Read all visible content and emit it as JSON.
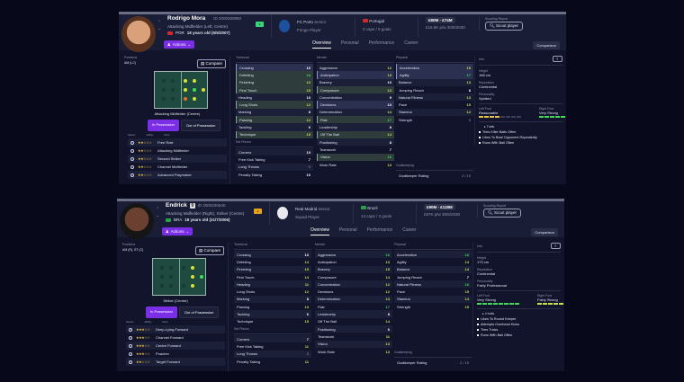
{
  "players": [
    {
      "name": "Rodrigo Mora",
      "shirt": "",
      "id": "ID 2000260860",
      "position": "Attacking Midfielder (Left, Centre)",
      "nationality_code": "POR",
      "age": "18 years old (5/5/2007)",
      "badge_color": "#37d67a",
      "club": "FC Porto",
      "club_status": "Senior",
      "squad_status": "Fringe Player",
      "country": "Portugal",
      "caps": "0 caps / 0 goals",
      "value": "£80M - £74M",
      "wage": "£16.5K p/w 30/6/2030",
      "scout_label": "Scouting Report",
      "scout_btn": "Scout player",
      "tabs": [
        "Overview",
        "Personal",
        "Performance",
        "Career"
      ],
      "comparison": "Comparison",
      "actions": "Actions",
      "positions_label": "Positions",
      "positions": "AM (LC)",
      "compare": "Compare",
      "role": "Attacking Midfielder (Centre)",
      "in_poss": "In Possession",
      "out_poss": "Out of Possession",
      "role_headers": [
        "Select",
        "Ability",
        "Role"
      ],
      "roles": [
        {
          "stars": "★★☆☆☆",
          "name": "Free Role"
        },
        {
          "stars": "★★☆☆☆",
          "name": "Attacking Midfielder"
        },
        {
          "stars": "★★☆☆☆",
          "name": "Second Striker"
        },
        {
          "stars": "★★☆☆☆",
          "name": "Channel Midfielder"
        },
        {
          "stars": "★★☆☆☆",
          "name": "Advanced Playmaker"
        }
      ],
      "technical": [
        [
          "Crossing",
          "10"
        ],
        [
          "Dribbling",
          "16"
        ],
        [
          "Finishing",
          "13"
        ],
        [
          "First Touch",
          "15"
        ],
        [
          "Heading",
          "10"
        ],
        [
          "Long Shots",
          "12"
        ],
        [
          "Marking",
          "8"
        ],
        [
          "Passing",
          "12"
        ],
        [
          "Tackling",
          "6"
        ],
        [
          "Technique",
          "15"
        ]
      ],
      "set_pieces": [
        [
          "Corners",
          "10"
        ],
        [
          "Free Kick Taking",
          "7"
        ],
        [
          "Long Throws",
          "5"
        ],
        [
          "Penalty Taking",
          "10"
        ]
      ],
      "mental": [
        [
          "Aggression",
          "12"
        ],
        [
          "Anticipation",
          "13"
        ],
        [
          "Bravery",
          "10"
        ],
        [
          "Composure",
          "12"
        ],
        [
          "Concentration",
          "9"
        ],
        [
          "Decisions",
          "10"
        ],
        [
          "Determination",
          "14"
        ],
        [
          "Flair",
          "17"
        ],
        [
          "Leadership",
          "8"
        ],
        [
          "Off The Ball",
          "14"
        ],
        [
          "Positioning",
          "8"
        ],
        [
          "Teamwork",
          "7"
        ],
        [
          "Vision",
          "16"
        ],
        [
          "Work Rate",
          "13"
        ]
      ],
      "physical": [
        [
          "Acceleration",
          "15"
        ],
        [
          "Agility",
          "17"
        ],
        [
          "Balance",
          "13"
        ],
        [
          "Jumping Reach",
          "8"
        ],
        [
          "Natural Fitness",
          "13"
        ],
        [
          "Pace",
          "15"
        ],
        [
          "Stamina",
          "12"
        ],
        [
          "Strength",
          "5"
        ]
      ],
      "gk_rating": "2 / 10",
      "info": {
        "height": "168 cm",
        "reputation": "Continental",
        "personality": "Spirited",
        "left_foot": "Reasonable",
        "right_foot": "Very Strong",
        "traits_label": "Traits",
        "traits": [
          "Tries Killer Balls Often",
          "Likes To Beat Opponent Repeatedly",
          "Runs With Ball Often"
        ]
      }
    },
    {
      "name": "Endrick",
      "shirt": "9",
      "id": "ID 2000230640",
      "position": "Attacking Midfielder (Right), Striker (Centre)",
      "nationality_code": "BRA",
      "age": "18 years old (21/7/2006)",
      "badge_color": "#e8a21a",
      "club": "Real Madrid",
      "club_status": "Senior",
      "squad_status": "Squad Player",
      "country": "Brazil",
      "caps": "14 caps / 3 goals",
      "value": "£90M - £118M",
      "wage": "£87K p/w 30/6/2030",
      "scout_label": "Scouting Report",
      "scout_btn": "Scout player",
      "tabs": [
        "Overview",
        "Personal",
        "Performance",
        "Career"
      ],
      "comparison": "Comparison",
      "actions": "Actions",
      "positions_label": "Positions",
      "positions": "AM (R), ST (C)",
      "compare": "Compare",
      "role": "Striker (Centre)",
      "in_poss": "In Possession",
      "out_poss": "Out of Possession",
      "role_headers": [
        "Select",
        "Ability",
        "Role"
      ],
      "roles": [
        {
          "stars": "★★★☆☆",
          "name": "Deep-Lying Forward"
        },
        {
          "stars": "★★★☆☆",
          "name": "Channel Forward"
        },
        {
          "stars": "★★★☆☆",
          "name": "Centre Forward"
        },
        {
          "stars": "★★★☆☆",
          "name": "Poacher"
        },
        {
          "stars": "★★☆☆☆",
          "name": "Target Forward"
        }
      ],
      "technical": [
        [
          "Crossing",
          "10"
        ],
        [
          "Dribbling",
          "14"
        ],
        [
          "Finishing",
          "15"
        ],
        [
          "First Touch",
          "14"
        ],
        [
          "Heading",
          "11"
        ],
        [
          "Long Shots",
          "12"
        ],
        [
          "Marking",
          "8"
        ],
        [
          "Passing",
          "13"
        ],
        [
          "Tackling",
          "6"
        ],
        [
          "Technique",
          "15"
        ]
      ],
      "set_pieces": [
        [
          "Corners",
          "7"
        ],
        [
          "Free Kick Taking",
          "11"
        ],
        [
          "Long Throws",
          "5"
        ],
        [
          "Penalty Taking",
          "11"
        ]
      ],
      "mental": [
        [
          "Aggression",
          "16"
        ],
        [
          "Anticipation",
          "13"
        ],
        [
          "Bravery",
          "15"
        ],
        [
          "Composure",
          "14"
        ],
        [
          "Concentration",
          "12"
        ],
        [
          "Decisions",
          "12"
        ],
        [
          "Determination",
          "13"
        ],
        [
          "Flair",
          "17"
        ],
        [
          "Leadership",
          "8"
        ],
        [
          "Off The Ball",
          "14"
        ],
        [
          "Positioning",
          "6"
        ],
        [
          "Teamwork",
          "11"
        ],
        [
          "Vision",
          "13"
        ],
        [
          "Work Rate",
          "13"
        ]
      ],
      "physical": [
        [
          "Acceleration",
          "16"
        ],
        [
          "Agility",
          "14"
        ],
        [
          "Balance",
          "14"
        ],
        [
          "Jumping Reach",
          "7"
        ],
        [
          "Natural Fitness",
          "16"
        ],
        [
          "Pace",
          "15"
        ],
        [
          "Stamina",
          "14"
        ],
        [
          "Strength",
          "15"
        ]
      ],
      "gk_rating": "2 / 10",
      "info": {
        "height": "173 cm",
        "reputation": "Continental",
        "personality": "Fairly Professional",
        "left_foot": "Very Strong",
        "right_foot": "Fairly Strong",
        "traits_label": "4 traits",
        "traits": [
          "Likes To Round Keeper",
          "Attempts Overhead Kicks",
          "Tries Tricks",
          "Runs With Ball Often"
        ]
      }
    }
  ],
  "labels": {
    "technical": "Technical",
    "set_pieces": "Set Pieces",
    "mental": "Mental",
    "physical": "Physical",
    "goalkeeping": "Goalkeeping",
    "gk_rating": "Goalkeeper Rating",
    "info": "Info",
    "height": "Height",
    "reputation": "Reputation",
    "personality": "Personality",
    "left_foot": "Left Foot",
    "right_foot": "Right Foot"
  }
}
